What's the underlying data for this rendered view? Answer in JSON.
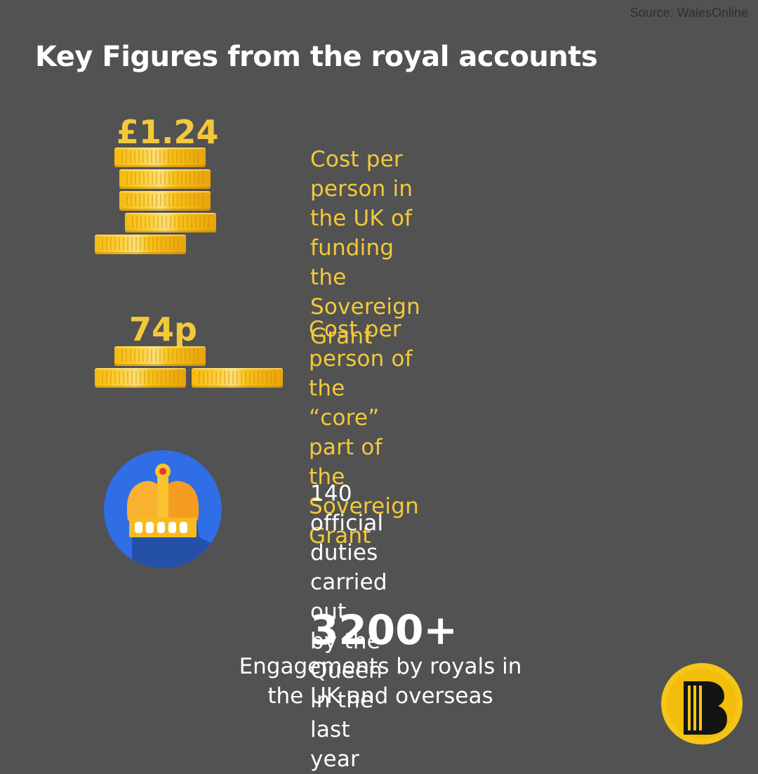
{
  "source": "Source: WalesOnline",
  "title": "Key Figures from the royal accounts",
  "stats": [
    {
      "value": "£1.24",
      "desc_line1": "Cost per person in the UK of",
      "desc_line2": "funding the Sovereign Grant",
      "icon": "coin-stack-icon"
    },
    {
      "value": "74p",
      "desc_line1": "Cost per person of the “core”",
      "desc_line2": "part of the Sovereign Grant",
      "icon": "coin-pile-icon"
    },
    {
      "desc_line1": "140 official duties carried out",
      "desc_line2": "by the Queen in the last year",
      "icon": "crown-icon"
    },
    {
      "value": "3200+",
      "desc_line1": "Engagements by royals in",
      "desc_line2": "the UK and overseas"
    }
  ],
  "colors": {
    "background": "#525252",
    "gold": "#f3c93a",
    "crown_circle": "#2f6ee6",
    "logo_yellow": "#f5c518"
  },
  "logo_icon": "b-logo-icon"
}
